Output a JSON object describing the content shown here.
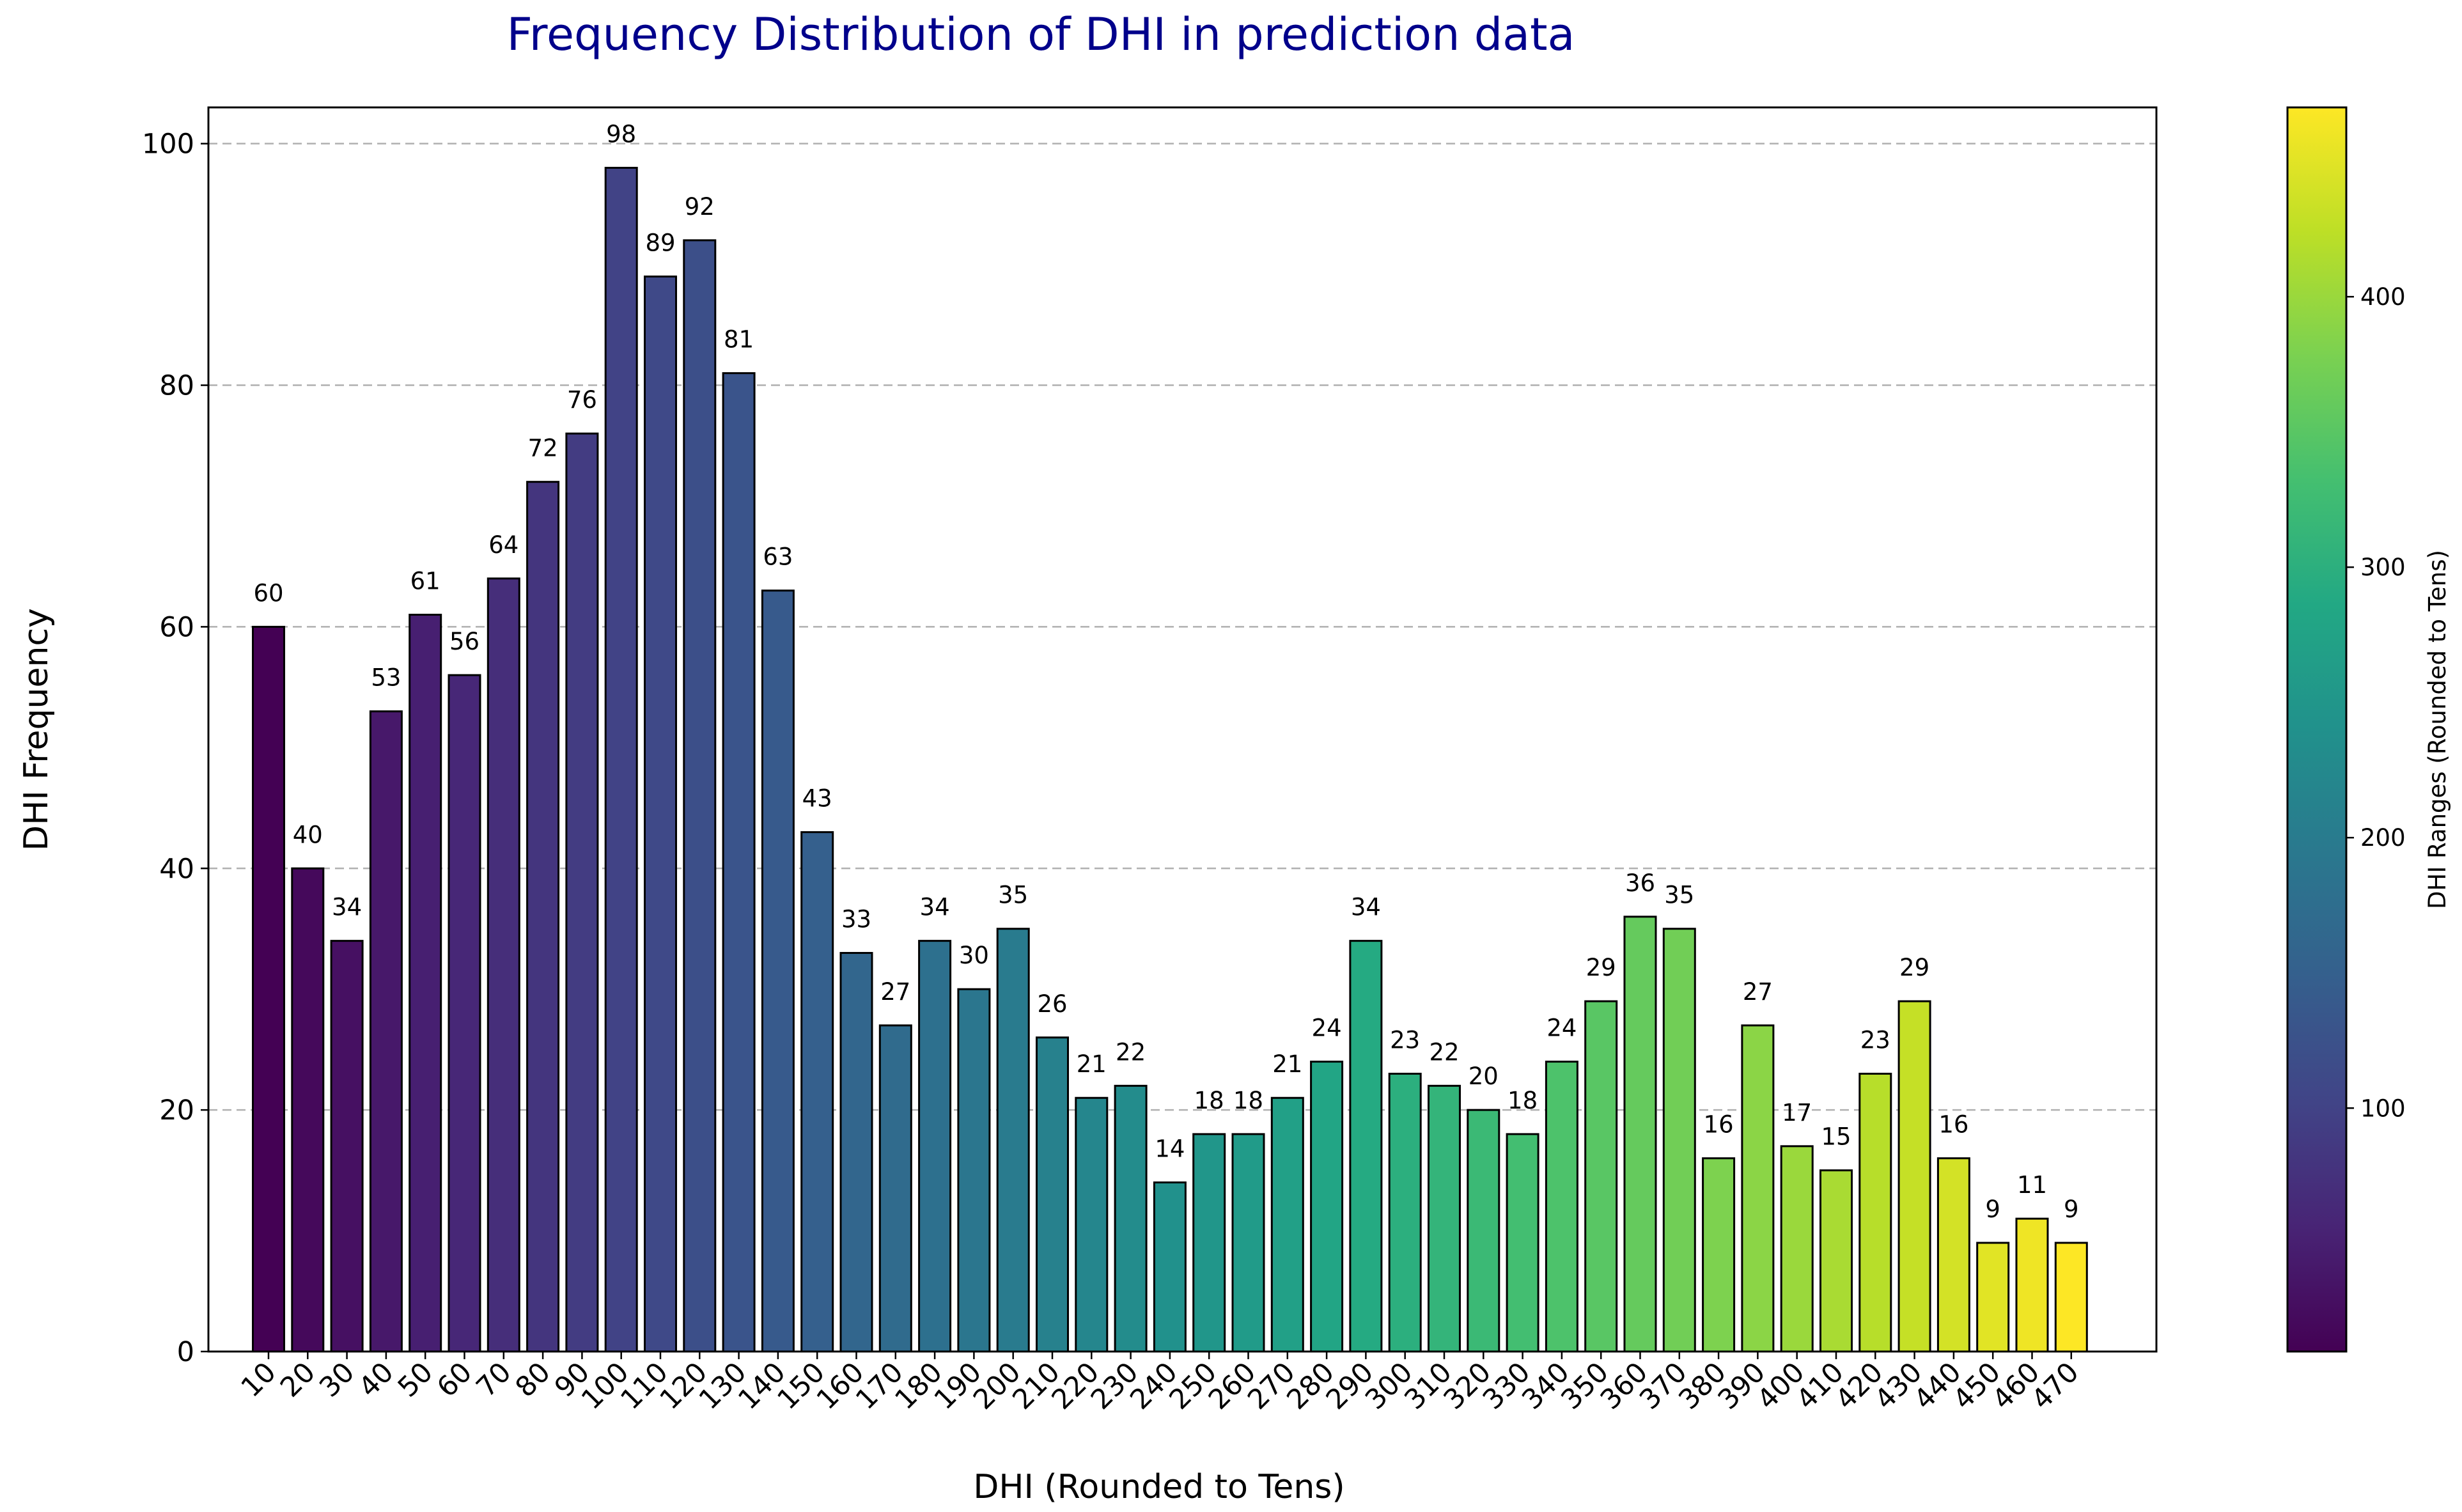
{
  "chart_data": {
    "type": "bar",
    "title": "Frequency Distribution of DHI in prediction data",
    "xlabel": "DHI (Rounded to Tens)",
    "ylabel": "DHI Frequency",
    "categories": [
      10,
      20,
      30,
      40,
      50,
      60,
      70,
      80,
      90,
      100,
      110,
      120,
      130,
      140,
      150,
      160,
      170,
      180,
      190,
      200,
      210,
      220,
      230,
      240,
      250,
      260,
      270,
      280,
      290,
      300,
      310,
      320,
      330,
      340,
      350,
      360,
      370,
      380,
      390,
      400,
      410,
      420,
      430,
      440,
      450,
      460,
      470
    ],
    "values": [
      60,
      40,
      34,
      53,
      61,
      56,
      64,
      72,
      76,
      98,
      89,
      92,
      81,
      63,
      43,
      33,
      27,
      34,
      30,
      35,
      26,
      21,
      22,
      14,
      18,
      18,
      21,
      24,
      34,
      23,
      22,
      20,
      18,
      24,
      29,
      36,
      35,
      16,
      27,
      17,
      15,
      23,
      29,
      16,
      9,
      11,
      9
    ],
    "ylim": [
      0,
      103
    ],
    "yticks": [
      0,
      20,
      40,
      60,
      80,
      100
    ],
    "grid": "horizontal dashed",
    "colormap": "viridis",
    "title_color": "#00008b",
    "colorbar": {
      "label": "DHI Ranges (Rounded to Tens)",
      "range": [
        10,
        470
      ],
      "ticks": [
        100,
        200,
        300,
        400
      ]
    }
  }
}
